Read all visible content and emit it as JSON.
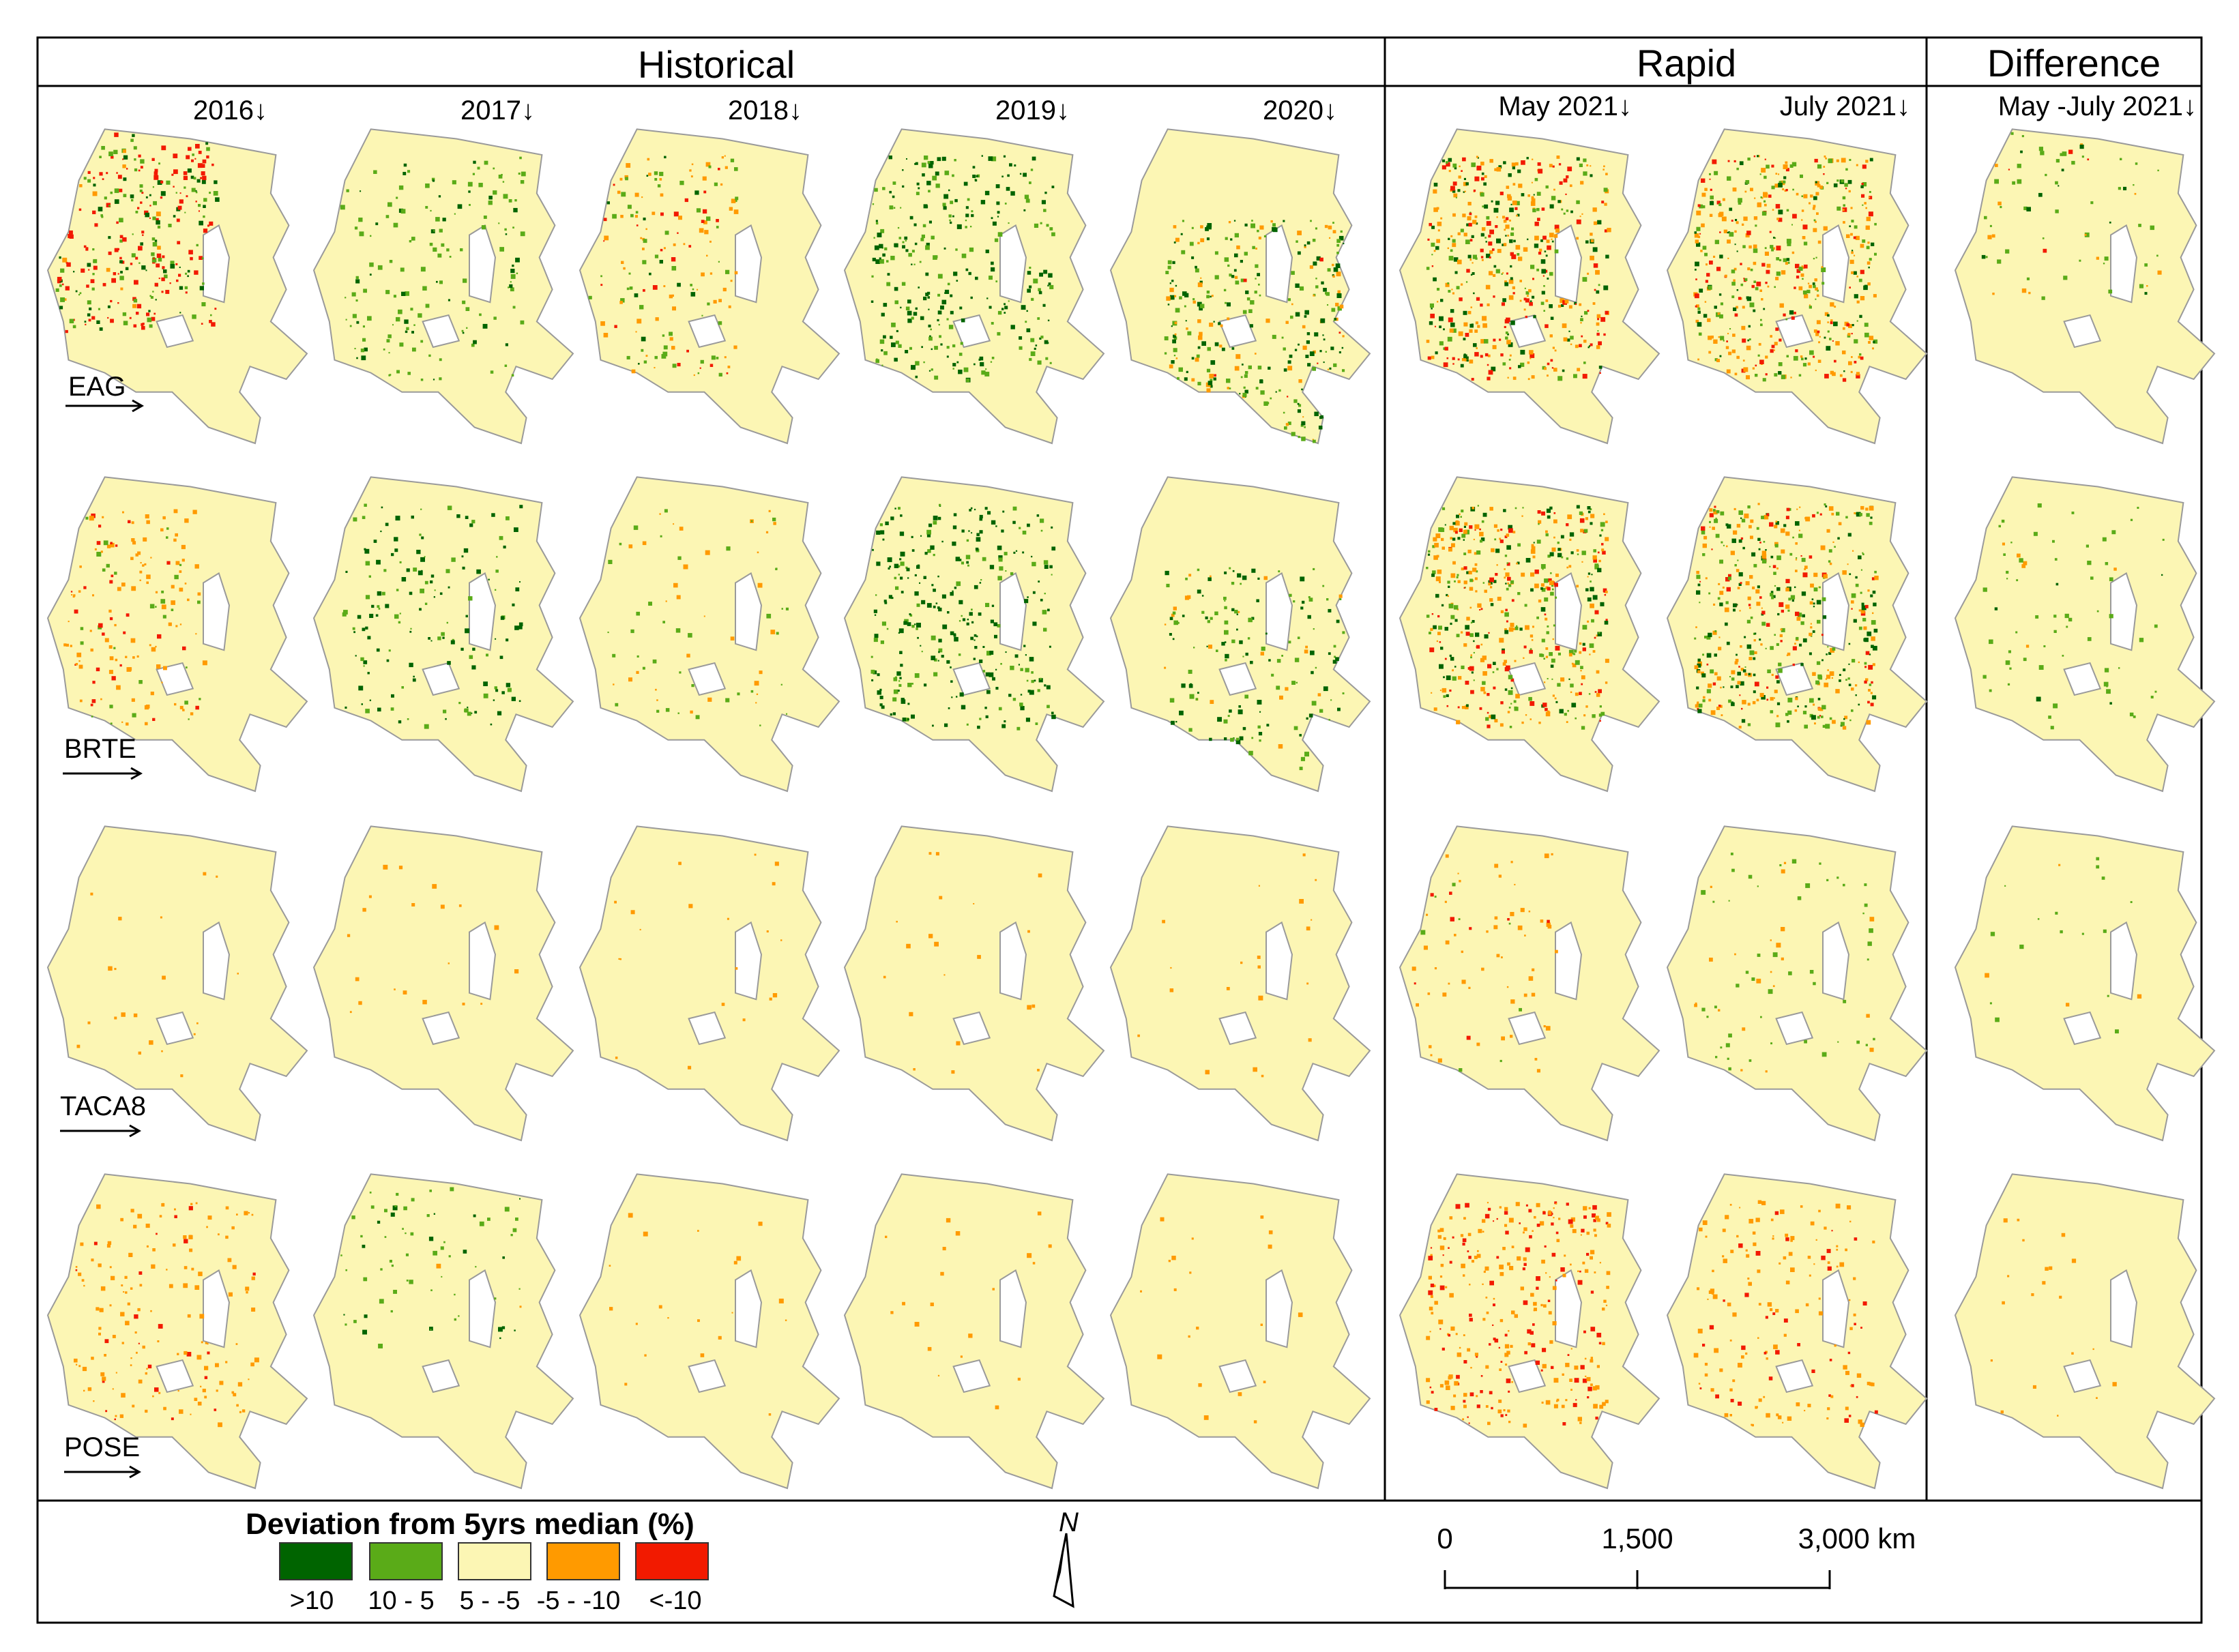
{
  "sections": [
    {
      "id": "historical",
      "title": "Historical"
    },
    {
      "id": "rapid",
      "title": "Rapid"
    },
    {
      "id": "difference",
      "title": "Difference"
    }
  ],
  "columns": [
    {
      "label": "2016",
      "section": "historical"
    },
    {
      "label": "2017",
      "section": "historical"
    },
    {
      "label": "2018",
      "section": "historical"
    },
    {
      "label": "2019",
      "section": "historical"
    },
    {
      "label": "2020",
      "section": "historical"
    },
    {
      "label": "May 2021",
      "section": "rapid"
    },
    {
      "label": "July 2021",
      "section": "rapid"
    },
    {
      "label": "May -July 2021",
      "section": "difference"
    }
  ],
  "rows": [
    {
      "label": "EAG"
    },
    {
      "label": "BRTE"
    },
    {
      "label": "TACA8"
    },
    {
      "label": "POSE"
    }
  ],
  "palette": {
    "gt10": "#006400",
    "10_5": "#5aab18",
    "5_-5": "#fcf6b4",
    "-5_-10": "#ff9a00",
    "lt-10": "#f21a00",
    "boundary": "#9a9a9a"
  },
  "legend": {
    "title": "Deviation from 5yrs median (%)",
    "classes": [
      {
        "label": ">10",
        "color": "#006400"
      },
      {
        "label": "10 - 5",
        "color": "#5aab18"
      },
      {
        "label": "5 - -5",
        "color": "#fcf6b4"
      },
      {
        "label": "-5 - -10",
        "color": "#ff9a00"
      },
      {
        "label": "<-10",
        "color": "#f21a00"
      }
    ]
  },
  "north_arrow": {
    "label": "N"
  },
  "scale_bar": {
    "ticks": [
      "0",
      "1,500",
      "3,000 km"
    ]
  },
  "panel_pattern": [
    [
      {
        "g": 0.5,
        "dg": 0.2,
        "o": 0.05,
        "r": 0.5,
        "ctr": "nw",
        "vis": "high"
      },
      {
        "g": 1,
        "dg": 0.25,
        "o": 0,
        "r": 0,
        "ctr": "c",
        "vis": "mid"
      },
      {
        "g": 0.5,
        "dg": 0.1,
        "o": 0.6,
        "r": 0.2,
        "ctr": "w",
        "vis": "mid"
      },
      {
        "g": 1,
        "dg": 0.6,
        "o": 0,
        "r": 0,
        "ctr": "c",
        "vis": "high"
      },
      {
        "g": 1,
        "dg": 0.5,
        "o": 0.35,
        "r": 0.05,
        "ctr": "s",
        "vis": "high"
      },
      {
        "g": 1,
        "dg": 0.6,
        "o": 1,
        "r": 0.6,
        "ctr": "c",
        "vis": "vhigh"
      },
      {
        "g": 0.9,
        "dg": 0.35,
        "o": 1,
        "r": 0.5,
        "ctr": "c",
        "vis": "vhigh"
      },
      {
        "g": 0.6,
        "dg": 0.1,
        "o": 0.2,
        "r": 0.05,
        "ctr": "n",
        "vis": "low"
      }
    ],
    [
      {
        "g": 0.15,
        "dg": 0,
        "o": 0.7,
        "r": 0.2,
        "ctr": "w",
        "vis": "mid"
      },
      {
        "g": 1,
        "dg": 0.6,
        "o": 0,
        "r": 0,
        "ctr": "c",
        "vis": "mid"
      },
      {
        "g": 0.4,
        "dg": 0,
        "o": 0.35,
        "r": 0,
        "ctr": "c",
        "vis": "low"
      },
      {
        "g": 1,
        "dg": 0.7,
        "o": 0,
        "r": 0,
        "ctr": "c",
        "vis": "high"
      },
      {
        "g": 1,
        "dg": 0.5,
        "o": 0.2,
        "r": 0,
        "ctr": "s",
        "vis": "mid"
      },
      {
        "g": 1,
        "dg": 0.4,
        "o": 1,
        "r": 0.4,
        "ctr": "c",
        "vis": "vhigh"
      },
      {
        "g": 1,
        "dg": 0.5,
        "o": 0.6,
        "r": 0.2,
        "ctr": "c",
        "vis": "vhigh"
      },
      {
        "g": 1,
        "dg": 0.1,
        "o": 0.1,
        "r": 0,
        "ctr": "c",
        "vis": "low"
      }
    ],
    [
      {
        "g": 0,
        "dg": 0,
        "o": 0.1,
        "r": 0,
        "ctr": "c",
        "vis": "vlow"
      },
      {
        "g": 0,
        "dg": 0,
        "o": 0.05,
        "r": 0,
        "ctr": "c",
        "vis": "vlow"
      },
      {
        "g": 0,
        "dg": 0,
        "o": 0.05,
        "r": 0,
        "ctr": "c",
        "vis": "vlow"
      },
      {
        "g": 0,
        "dg": 0,
        "o": 0.05,
        "r": 0,
        "ctr": "c",
        "vis": "vlow"
      },
      {
        "g": 0,
        "dg": 0,
        "o": 0.05,
        "r": 0,
        "ctr": "c",
        "vis": "vlow"
      },
      {
        "g": 0.2,
        "dg": 0,
        "o": 1,
        "r": 0.2,
        "ctr": "w",
        "vis": "low"
      },
      {
        "g": 1,
        "dg": 0,
        "o": 0.3,
        "r": 0,
        "ctr": "c",
        "vis": "low"
      },
      {
        "g": 0.3,
        "dg": 0,
        "o": 0.1,
        "r": 0,
        "ctr": "c",
        "vis": "vlow"
      }
    ],
    [
      {
        "g": 0,
        "dg": 0,
        "o": 1,
        "r": 0.25,
        "ctr": "c",
        "vis": "mid"
      },
      {
        "g": 1,
        "dg": 0.3,
        "o": 0.05,
        "r": 0,
        "ctr": "n",
        "vis": "low"
      },
      {
        "g": 0,
        "dg": 0,
        "o": 0.15,
        "r": 0,
        "ctr": "c",
        "vis": "vlow"
      },
      {
        "g": 0,
        "dg": 0,
        "o": 0.05,
        "r": 0,
        "ctr": "c",
        "vis": "vlow"
      },
      {
        "g": 0,
        "dg": 0,
        "o": 0.1,
        "r": 0,
        "ctr": "c",
        "vis": "vlow"
      },
      {
        "g": 0,
        "dg": 0,
        "o": 1,
        "r": 0.5,
        "ctr": "c",
        "vis": "high"
      },
      {
        "g": 0,
        "dg": 0,
        "o": 1,
        "r": 0.3,
        "ctr": "c",
        "vis": "mid"
      },
      {
        "g": 0,
        "dg": 0,
        "o": 0.1,
        "r": 0,
        "ctr": "c",
        "vis": "vlow"
      }
    ]
  ]
}
